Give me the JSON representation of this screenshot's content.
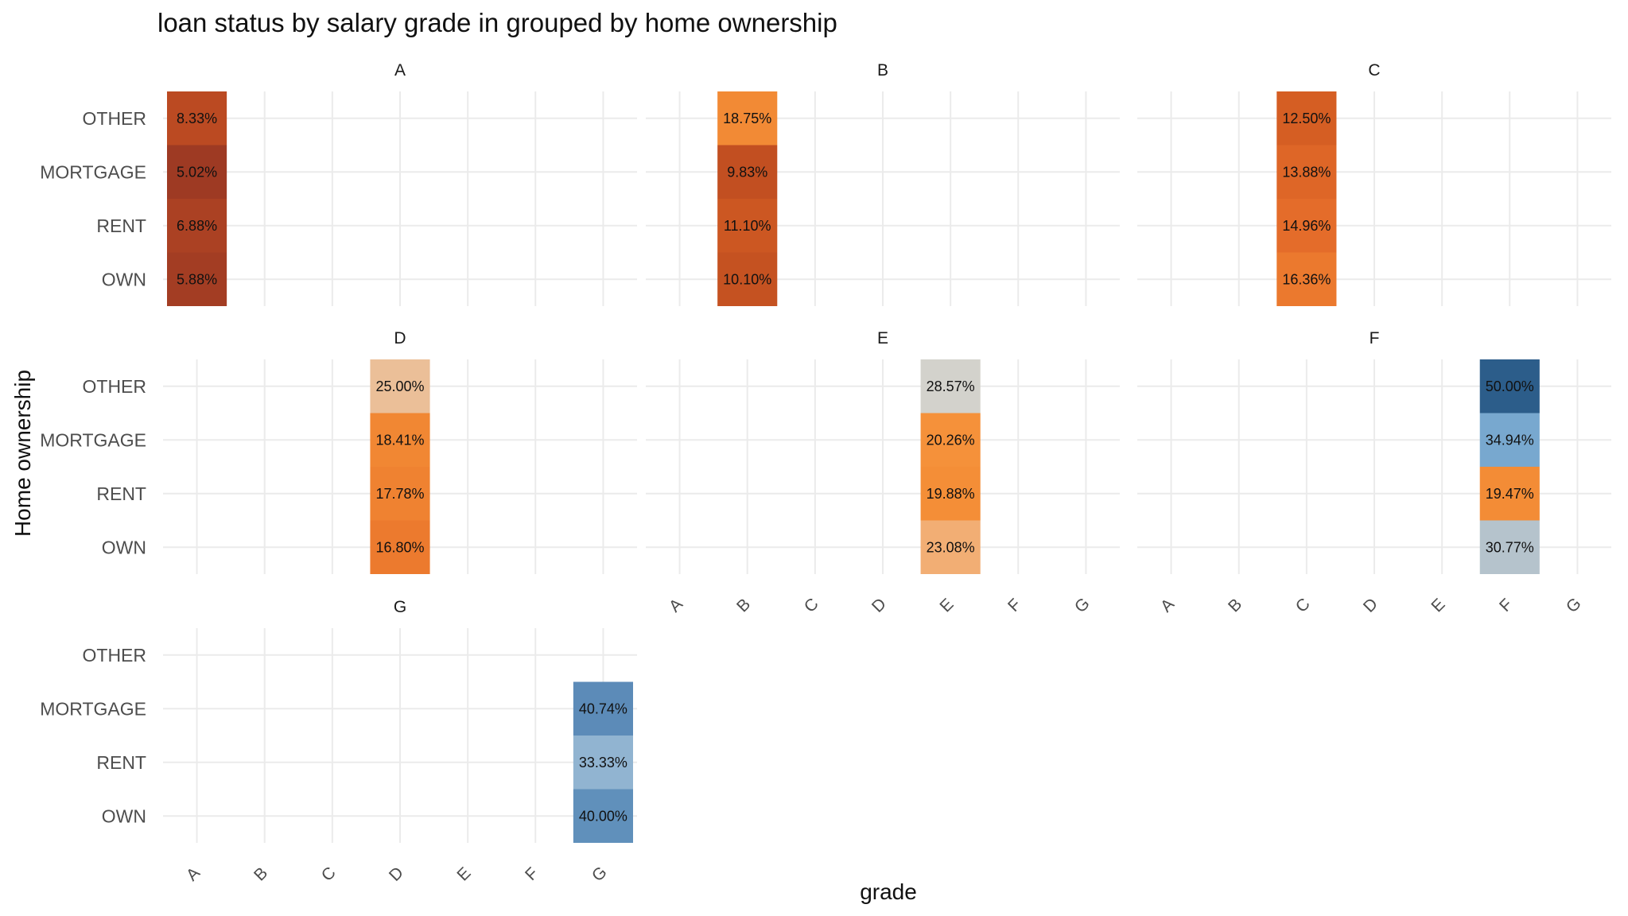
{
  "chart_data": {
    "type": "heatmap",
    "title": "loan status by salary grade in grouped by home ownership",
    "xlabel": "grade",
    "ylabel": "Home ownership",
    "x_categories": [
      "A",
      "B",
      "C",
      "D",
      "E",
      "F",
      "G"
    ],
    "y_categories": [
      "OWN",
      "RENT",
      "MORTGAGE",
      "OTHER"
    ],
    "grid": true,
    "panels": [
      {
        "facet": "A",
        "x": "A",
        "cells": [
          {
            "y": "OTHER",
            "value": 8.33,
            "label": "8.33%",
            "color": "#bb4a22"
          },
          {
            "y": "MORTGAGE",
            "value": 5.02,
            "label": "5.02%",
            "color": "#9e3a23"
          },
          {
            "y": "RENT",
            "value": 6.88,
            "label": "6.88%",
            "color": "#ab4123"
          },
          {
            "y": "OWN",
            "value": 5.88,
            "label": "5.88%",
            "color": "#a33d23"
          }
        ]
      },
      {
        "facet": "B",
        "x": "B",
        "cells": [
          {
            "y": "OTHER",
            "value": 18.75,
            "label": "18.75%",
            "color": "#f28a35"
          },
          {
            "y": "MORTGAGE",
            "value": 9.83,
            "label": "9.83%",
            "color": "#c24f21"
          },
          {
            "y": "RENT",
            "value": 11.1,
            "label": "11.10%",
            "color": "#cc5722"
          },
          {
            "y": "OWN",
            "value": 10.1,
            "label": "10.10%",
            "color": "#c55221"
          }
        ]
      },
      {
        "facet": "C",
        "x": "C",
        "cells": [
          {
            "y": "OTHER",
            "value": 12.5,
            "label": "12.50%",
            "color": "#d55e23"
          },
          {
            "y": "MORTGAGE",
            "value": 13.88,
            "label": "13.88%",
            "color": "#de6627"
          },
          {
            "y": "RENT",
            "value": 14.96,
            "label": "14.96%",
            "color": "#e46c2a"
          },
          {
            "y": "OWN",
            "value": 16.36,
            "label": "16.36%",
            "color": "#eb792e"
          }
        ]
      },
      {
        "facet": "D",
        "x": "D",
        "cells": [
          {
            "y": "OTHER",
            "value": 25.0,
            "label": "25.00%",
            "color": "#ebbf98"
          },
          {
            "y": "MORTGAGE",
            "value": 18.41,
            "label": "18.41%",
            "color": "#f18733"
          },
          {
            "y": "RENT",
            "value": 17.78,
            "label": "17.78%",
            "color": "#ef8231"
          },
          {
            "y": "OWN",
            "value": 16.8,
            "label": "16.80%",
            "color": "#ec7a2e"
          }
        ]
      },
      {
        "facet": "E",
        "x": "E",
        "cells": [
          {
            "y": "OTHER",
            "value": 28.57,
            "label": "28.57%",
            "color": "#d3d2cc"
          },
          {
            "y": "MORTGAGE",
            "value": 20.26,
            "label": "20.26%",
            "color": "#f5913a"
          },
          {
            "y": "RENT",
            "value": 19.88,
            "label": "19.88%",
            "color": "#f48e37"
          },
          {
            "y": "OWN",
            "value": 23.08,
            "label": "23.08%",
            "color": "#f2ae74"
          }
        ]
      },
      {
        "facet": "F",
        "x": "F",
        "cells": [
          {
            "y": "OTHER",
            "value": 50.0,
            "label": "50.00%",
            "color": "#2c5d8a"
          },
          {
            "y": "MORTGAGE",
            "value": 34.94,
            "label": "34.94%",
            "color": "#78a8cf"
          },
          {
            "y": "RENT",
            "value": 19.47,
            "label": "19.47%",
            "color": "#f38c36"
          },
          {
            "y": "OWN",
            "value": 30.77,
            "label": "30.77%",
            "color": "#b5c3cc"
          }
        ]
      },
      {
        "facet": "G",
        "x": "G",
        "cells": [
          {
            "y": "MORTGAGE",
            "value": 40.74,
            "label": "40.74%",
            "color": "#5c8bb8"
          },
          {
            "y": "RENT",
            "value": 33.33,
            "label": "33.33%",
            "color": "#91b4d1"
          },
          {
            "y": "OWN",
            "value": 40.0,
            "label": "40.00%",
            "color": "#6090bb"
          }
        ]
      }
    ]
  }
}
